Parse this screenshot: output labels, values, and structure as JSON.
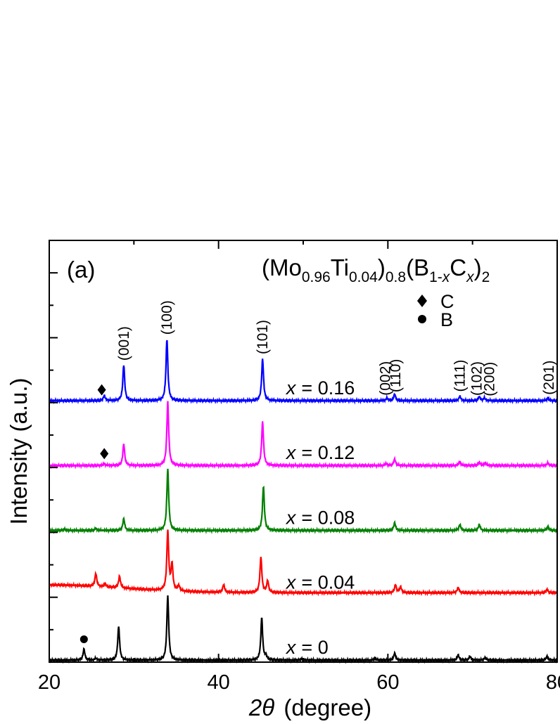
{
  "chart_data": {
    "type": "line",
    "panel_label": "(a)",
    "title_parts": [
      {
        "t": "(Mo",
        "sub": false,
        "it": false
      },
      {
        "t": "0.96",
        "sub": true,
        "it": false
      },
      {
        "t": "Ti",
        "sub": false,
        "it": false
      },
      {
        "t": "0.04",
        "sub": true,
        "it": false
      },
      {
        "t": ")",
        "sub": false,
        "it": false
      },
      {
        "t": "0.8",
        "sub": true,
        "it": false
      },
      {
        "t": "(B",
        "sub": false,
        "it": false
      },
      {
        "t": "1-",
        "sub": true,
        "it": false
      },
      {
        "t": "x",
        "sub": true,
        "it": true
      },
      {
        "t": "C",
        "sub": false,
        "it": false
      },
      {
        "t": "x",
        "sub": true,
        "it": true
      },
      {
        "t": ")",
        "sub": false,
        "it": false
      },
      {
        "t": "2",
        "sub": true,
        "it": false
      }
    ],
    "xlabel_theta": "2θ",
    "xlabel_unit": "(degree)",
    "ylabel": "Intensity (a.u.)",
    "xlim": [
      20,
      80
    ],
    "xticks": [
      20,
      40,
      60,
      80
    ],
    "xtick_labels": [
      "20",
      "40",
      "60",
      "80"
    ],
    "ylim": [
      0,
      6.5
    ],
    "legend": [
      {
        "marker": "diamond",
        "label": "C"
      },
      {
        "marker": "circle",
        "label": "B"
      }
    ],
    "series": [
      {
        "name": "x = 0",
        "label_var": "x",
        "label_value": "= 0",
        "color": "#000000",
        "offset": 0.0,
        "peaks": [
          {
            "x": 24.1,
            "h": 0.17
          },
          {
            "x": 25.5,
            "h": 0.03
          },
          {
            "x": 28.2,
            "h": 0.52
          },
          {
            "x": 34.0,
            "h": 1.0
          },
          {
            "x": 45.1,
            "h": 0.65
          },
          {
            "x": 45.6,
            "h": 0.06
          },
          {
            "x": 49.8,
            "h": 0.02
          },
          {
            "x": 58.5,
            "h": 0.03
          },
          {
            "x": 60.8,
            "h": 0.11
          },
          {
            "x": 68.3,
            "h": 0.08
          },
          {
            "x": 69.7,
            "h": 0.06
          },
          {
            "x": 71.5,
            "h": 0.04
          },
          {
            "x": 78.8,
            "h": 0.06
          }
        ],
        "markers": [
          {
            "x": 24.1,
            "type": "circle"
          }
        ]
      },
      {
        "name": "x = 0.04",
        "label_var": "x",
        "label_value": "= 0.04",
        "color": "#ff0000",
        "offset": 1.0,
        "peaks": [
          {
            "x": 25.5,
            "h": 0.2
          },
          {
            "x": 26.6,
            "h": 0.05
          },
          {
            "x": 28.3,
            "h": 0.18
          },
          {
            "x": 34.0,
            "h": 0.92
          },
          {
            "x": 34.5,
            "h": 0.4
          },
          {
            "x": 35.3,
            "h": 0.08
          },
          {
            "x": 40.6,
            "h": 0.12
          },
          {
            "x": 45.0,
            "h": 0.55
          },
          {
            "x": 45.8,
            "h": 0.18
          },
          {
            "x": 60.9,
            "h": 0.12
          },
          {
            "x": 61.5,
            "h": 0.09
          },
          {
            "x": 68.3,
            "h": 0.08
          },
          {
            "x": 78.8,
            "h": 0.05
          }
        ],
        "markers": []
      },
      {
        "name": "x = 0.08",
        "label_var": "x",
        "label_value": "= 0.08",
        "color": "#008000",
        "offset": 2.0,
        "peaks": [
          {
            "x": 21.8,
            "h": 0.02
          },
          {
            "x": 25.5,
            "h": 0.03
          },
          {
            "x": 28.8,
            "h": 0.18
          },
          {
            "x": 34.0,
            "h": 0.95
          },
          {
            "x": 45.3,
            "h": 0.68
          },
          {
            "x": 60.8,
            "h": 0.12
          },
          {
            "x": 68.5,
            "h": 0.09
          },
          {
            "x": 70.8,
            "h": 0.09
          },
          {
            "x": 78.9,
            "h": 0.06
          }
        ],
        "markers": []
      },
      {
        "name": "x = 0.12",
        "label_var": "x",
        "label_value": "= 0.12",
        "color": "#ff00ff",
        "offset": 3.0,
        "peaks": [
          {
            "x": 26.5,
            "h": 0.03
          },
          {
            "x": 28.8,
            "h": 0.33
          },
          {
            "x": 34.0,
            "h": 0.98
          },
          {
            "x": 45.2,
            "h": 0.68
          },
          {
            "x": 59.8,
            "h": 0.03
          },
          {
            "x": 60.8,
            "h": 0.1
          },
          {
            "x": 68.5,
            "h": 0.06
          },
          {
            "x": 70.8,
            "h": 0.05
          },
          {
            "x": 71.5,
            "h": 0.04
          },
          {
            "x": 78.9,
            "h": 0.04
          }
        ],
        "markers": [
          {
            "x": 26.5,
            "type": "diamond"
          }
        ]
      },
      {
        "name": "x = 0.16",
        "label_var": "x",
        "label_value": "= 0.16",
        "color": "#0000ff",
        "offset": 4.0,
        "peaks": [
          {
            "x": 26.5,
            "h": 0.08
          },
          {
            "x": 28.8,
            "h": 0.55
          },
          {
            "x": 33.9,
            "h": 0.95
          },
          {
            "x": 45.2,
            "h": 0.65
          },
          {
            "x": 59.9,
            "h": 0.04
          },
          {
            "x": 60.8,
            "h": 0.1
          },
          {
            "x": 68.5,
            "h": 0.07
          },
          {
            "x": 70.8,
            "h": 0.06
          },
          {
            "x": 71.4,
            "h": 0.04
          },
          {
            "x": 78.9,
            "h": 0.04
          }
        ],
        "markers": [
          {
            "x": 26.2,
            "type": "diamond"
          }
        ]
      }
    ],
    "peak_labels": [
      {
        "text": "(001)",
        "x": 28.8
      },
      {
        "text": "(100)",
        "x": 33.9
      },
      {
        "text": "(101)",
        "x": 45.2
      },
      {
        "text": "(002)",
        "x": 59.7
      },
      {
        "text": "(110)",
        "x": 60.9
      },
      {
        "text": "(111)",
        "x": 68.5
      },
      {
        "text": "(102)",
        "x": 70.5
      },
      {
        "text": "(200)",
        "x": 72.0
      },
      {
        "text": "(201)",
        "x": 79.0
      }
    ]
  }
}
